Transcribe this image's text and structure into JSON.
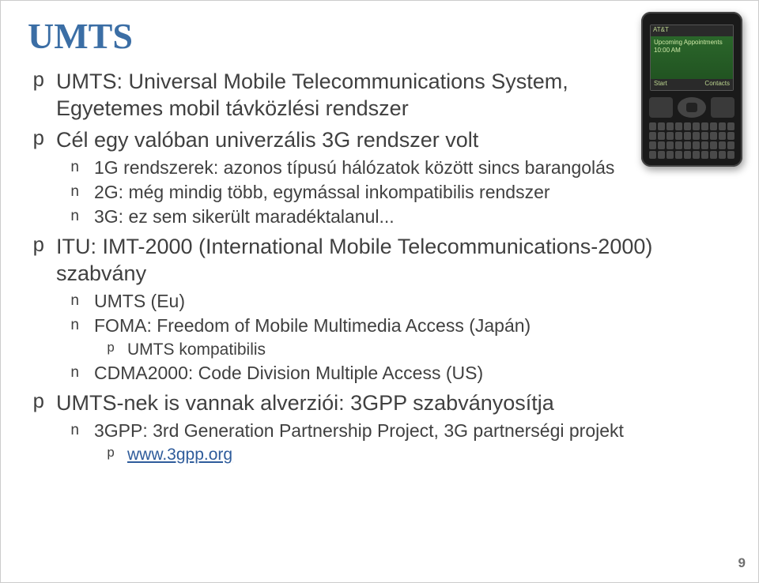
{
  "colors": {
    "title": "#3b6ea5",
    "body": "#404040",
    "link": "#2f5c9b",
    "page_num": "#6f6f6f",
    "background": "#ffffff"
  },
  "title": "UMTS",
  "page_number": "9",
  "bullets": {
    "b1_glyph": "p",
    "b2_glyph": "n",
    "b3_glyph": "p",
    "items": [
      {
        "text": "UMTS: Universal Mobile Telecommunications System, Egyetemes mobil távközlési rendszer"
      },
      {
        "text": "Cél egy valóban univerzális 3G rendszer volt",
        "children": [
          {
            "text": "1G rendszerek: azonos típusú hálózatok között sincs barangolás"
          },
          {
            "text": "2G: még mindig több, egymással inkompatibilis rendszer"
          },
          {
            "text": "3G: ez sem sikerült maradéktalanul..."
          }
        ]
      },
      {
        "text": "ITU: IMT-2000 (International Mobile Telecommunications-2000) szabvány",
        "children": [
          {
            "text": "UMTS (Eu)"
          },
          {
            "text": "FOMA: Freedom of Mobile Multimedia Access (Japán)",
            "children": [
              {
                "text": "UMTS kompatibilis"
              }
            ]
          },
          {
            "text": "CDMA2000: Code Division Multiple Access (US)"
          }
        ]
      },
      {
        "text": "UMTS-nek is vannak alverziói: 3GPP szabványosítja",
        "children": [
          {
            "text": "3GPP: 3rd Generation Partnership Project, 3G partnerségi projekt",
            "children": [
              {
                "text": "www.3gpp.org",
                "link": true
              }
            ]
          }
        ]
      }
    ]
  },
  "phone": {
    "status_text": "AT&T",
    "home_line1": "Upcoming Appointments",
    "home_line2": "10:00 AM",
    "soft_left": "Start",
    "soft_right": "Contacts"
  }
}
